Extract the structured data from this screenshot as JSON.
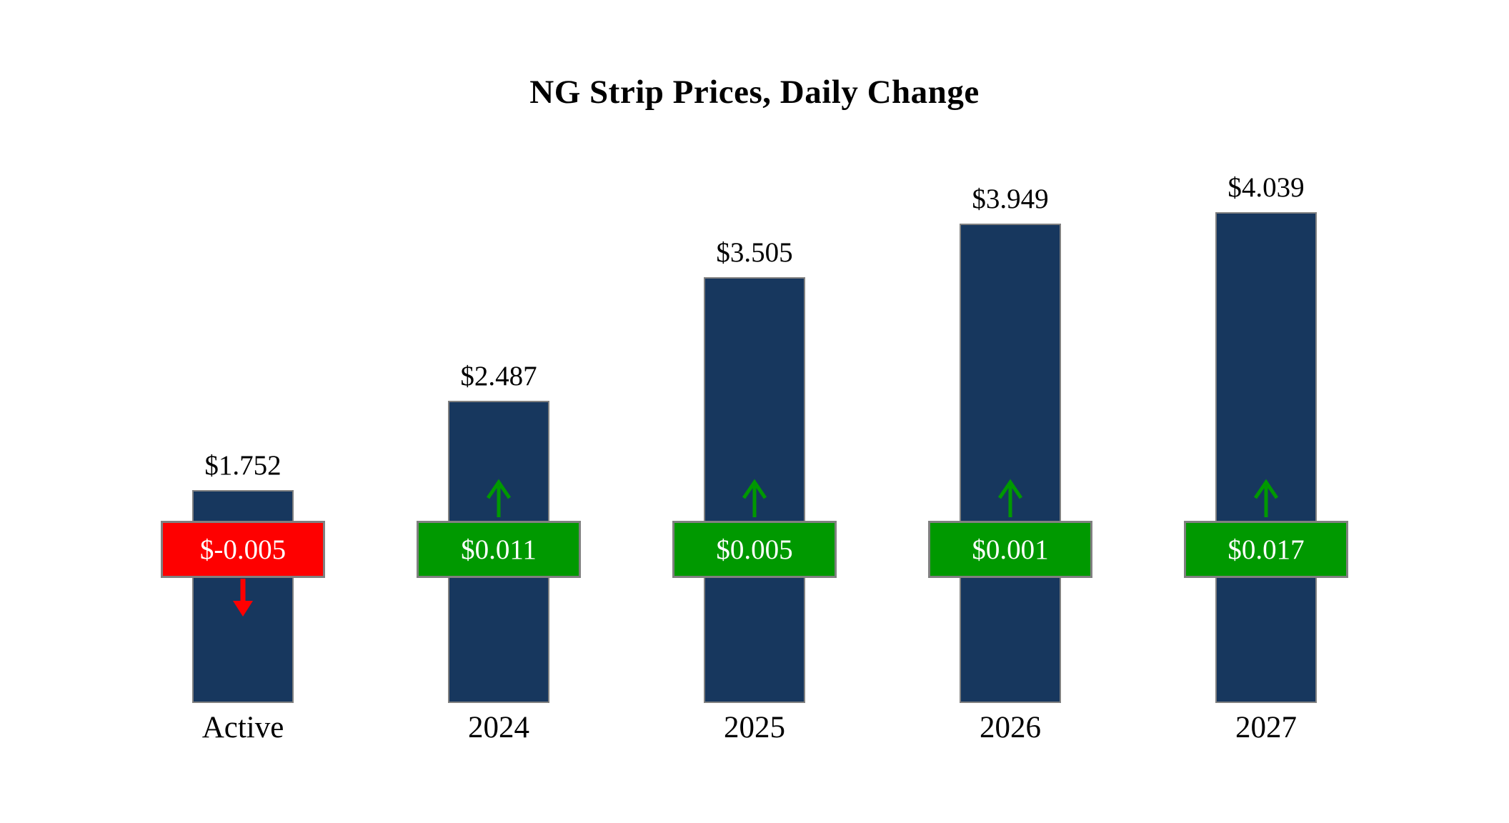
{
  "chart_data": {
    "type": "bar",
    "title": "NG Strip Prices, Daily Change",
    "categories": [
      "Active",
      "2024",
      "2025",
      "2026",
      "2027"
    ],
    "values": [
      1.752,
      2.487,
      3.505,
      3.949,
      4.039
    ],
    "value_labels": [
      "$1.752",
      "$2.487",
      "$3.505",
      "$3.949",
      "$4.039"
    ],
    "changes": [
      -0.005,
      0.011,
      0.005,
      0.001,
      0.017
    ],
    "change_labels": [
      "$-0.005",
      "$0.011",
      "$0.005",
      "$0.001",
      "$0.017"
    ],
    "ylim": [
      0,
      4.039
    ],
    "grid": false,
    "legend": false,
    "bar_color": "#17375E",
    "up_color": "#009900",
    "down_color": "#FE0000",
    "badge_border_color": "#808080",
    "badge_text_color": "#FFFFFF"
  }
}
